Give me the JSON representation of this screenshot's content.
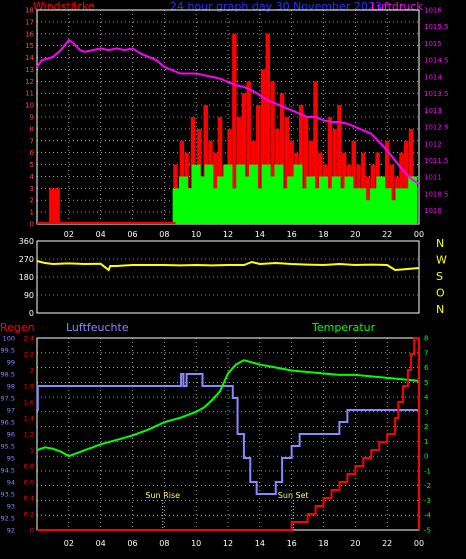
{
  "title": "24 hour graph day  30 November 2023",
  "colors": {
    "red": "#ff0000",
    "green": "#00ff00",
    "magenta": "#ff00ff",
    "yellow": "#ffff00",
    "blue": "#8888ff",
    "grid": "#ffffff",
    "axis": "#cccccc"
  },
  "chart_data": [
    {
      "id": "wind",
      "type": "bar",
      "title_left": "Windstärke",
      "title_right": "Luftdruck",
      "y_left_ticks": [
        0,
        1,
        2,
        3,
        4,
        5,
        6,
        7,
        8,
        9,
        10,
        11,
        12,
        13,
        14,
        15,
        16,
        17,
        18
      ],
      "y_right_ticks": [
        "1010",
        "1010.5",
        "1011",
        "1011.5",
        "1012",
        "1012.5",
        "1013",
        "1013.5",
        "1014",
        "1014.5",
        "1015",
        "1015.5",
        "1016"
      ],
      "ylim_left": [
        0,
        18
      ],
      "ylim_right": [
        1009.6,
        1016
      ],
      "x_ticks": [
        "02",
        "04",
        "06",
        "08",
        "10",
        "12",
        "14",
        "16",
        "18",
        "20",
        "22",
        "00"
      ],
      "pressure": {
        "x": [
          0,
          0.3,
          0.7,
          1,
          1.5,
          2,
          2.3,
          2.7,
          3,
          3.5,
          4,
          4.5,
          5,
          5.5,
          6,
          6.5,
          7,
          7.5,
          8,
          8.5,
          9,
          9.5,
          10,
          10.5,
          11,
          11.5,
          12,
          12.5,
          13,
          13.5,
          14,
          14.5,
          15,
          15.5,
          16,
          16.5,
          17,
          17.5,
          18,
          18.5,
          19,
          19.5,
          20,
          20.5,
          21,
          21.5,
          22,
          22.5,
          23,
          23.5,
          24
        ],
        "y": [
          1014.3,
          1014.5,
          1014.55,
          1014.6,
          1014.8,
          1015.1,
          1015.0,
          1014.8,
          1014.75,
          1014.8,
          1014.85,
          1014.8,
          1014.85,
          1014.8,
          1014.85,
          1014.7,
          1014.6,
          1014.5,
          1014.3,
          1014.2,
          1014.1,
          1014.1,
          1014.1,
          1014.05,
          1014.0,
          1013.95,
          1013.85,
          1013.75,
          1013.7,
          1013.6,
          1013.45,
          1013.3,
          1013.2,
          1013.1,
          1013.0,
          1012.9,
          1012.8,
          1012.8,
          1012.7,
          1012.65,
          1012.65,
          1012.6,
          1012.5,
          1012.4,
          1012.3,
          1012.05,
          1011.8,
          1011.5,
          1011.2,
          1010.95,
          1010.8
        ]
      },
      "wind_bars_red": [
        [
          0.9,
          3
        ],
        [
          1.1,
          3
        ],
        [
          1.3,
          3
        ],
        [
          8.7,
          5
        ],
        [
          9.1,
          7
        ],
        [
          9.4,
          6
        ],
        [
          9.8,
          9
        ],
        [
          10.2,
          8
        ],
        [
          10.6,
          10
        ],
        [
          10.9,
          7
        ],
        [
          11.2,
          6
        ],
        [
          11.5,
          9
        ],
        [
          11.8,
          5
        ],
        [
          12.1,
          8
        ],
        [
          12.4,
          16
        ],
        [
          12.7,
          9
        ],
        [
          13.0,
          11
        ],
        [
          13.3,
          12
        ],
        [
          13.6,
          7
        ],
        [
          13.9,
          10
        ],
        [
          14.2,
          13
        ],
        [
          14.5,
          16
        ],
        [
          14.8,
          12
        ],
        [
          15.1,
          8
        ],
        [
          15.4,
          11
        ],
        [
          15.7,
          9
        ],
        [
          16.0,
          7
        ],
        [
          16.3,
          6
        ],
        [
          16.6,
          10
        ],
        [
          16.9,
          9
        ],
        [
          17.2,
          7
        ],
        [
          17.5,
          12
        ],
        [
          17.8,
          6
        ],
        [
          18.1,
          5
        ],
        [
          18.4,
          9
        ],
        [
          18.7,
          8
        ],
        [
          19.0,
          10
        ],
        [
          19.3,
          6
        ],
        [
          19.6,
          5
        ],
        [
          19.9,
          7
        ],
        [
          20.2,
          5
        ],
        [
          20.5,
          6
        ],
        [
          20.8,
          4
        ],
        [
          21.1,
          5
        ],
        [
          21.4,
          6
        ],
        [
          21.7,
          4
        ],
        [
          22.0,
          7
        ],
        [
          22.3,
          5
        ],
        [
          22.6,
          4
        ],
        [
          22.9,
          6
        ],
        [
          23.2,
          7
        ],
        [
          23.5,
          8
        ],
        [
          23.8,
          3
        ]
      ],
      "wind_bars_green": [
        [
          8.8,
          3
        ],
        [
          9.2,
          4
        ],
        [
          9.6,
          3
        ],
        [
          10.0,
          5
        ],
        [
          10.4,
          4
        ],
        [
          10.8,
          5
        ],
        [
          11.2,
          3
        ],
        [
          11.6,
          4
        ],
        [
          12.0,
          5
        ],
        [
          12.4,
          3
        ],
        [
          12.8,
          5
        ],
        [
          13.2,
          4
        ],
        [
          13.6,
          5
        ],
        [
          14.0,
          3
        ],
        [
          14.4,
          5
        ],
        [
          14.8,
          4
        ],
        [
          15.2,
          5
        ],
        [
          15.6,
          3
        ],
        [
          16.0,
          4
        ],
        [
          16.4,
          5
        ],
        [
          16.8,
          3
        ],
        [
          17.2,
          4
        ],
        [
          17.6,
          3
        ],
        [
          18.0,
          4
        ],
        [
          18.4,
          3
        ],
        [
          18.8,
          4
        ],
        [
          19.2,
          3
        ],
        [
          19.6,
          4
        ],
        [
          20.0,
          3
        ],
        [
          20.4,
          3
        ],
        [
          20.8,
          2
        ],
        [
          21.2,
          3
        ],
        [
          21.6,
          4
        ],
        [
          22.0,
          3
        ],
        [
          22.4,
          2
        ],
        [
          22.8,
          3
        ],
        [
          23.2,
          3
        ],
        [
          23.6,
          4
        ]
      ]
    },
    {
      "id": "direction",
      "type": "line",
      "y_ticks": [
        "360",
        "270",
        "180",
        "90",
        "0"
      ],
      "right_labels": [
        "N",
        "W",
        "S",
        "O",
        "N"
      ],
      "ylim": [
        0,
        360
      ],
      "x": [
        0,
        0.5,
        1,
        2,
        3,
        4,
        4.5,
        4.6,
        5,
        6,
        7,
        8,
        9,
        10,
        11,
        12,
        13,
        13.5,
        14,
        15,
        16,
        17,
        18,
        19,
        20,
        21,
        22,
        22.5,
        23,
        24
      ],
      "y": [
        260,
        250,
        245,
        248,
        245,
        246,
        215,
        235,
        235,
        240,
        240,
        240,
        238,
        240,
        238,
        240,
        240,
        255,
        245,
        250,
        245,
        242,
        240,
        245,
        240,
        242,
        240,
        215,
        218,
        225
      ]
    },
    {
      "id": "rain_hum_temp",
      "type": "line",
      "title_left": "Regen",
      "title_mid": "Luftfeuchte",
      "title_right": "Temperatur",
      "y_rain_ticks": [
        "0",
        "0.2",
        "0.4",
        "0.6",
        "0.8",
        "1",
        "1.2",
        "1.4",
        "1.6",
        "1.8",
        "2",
        "2.2",
        "2.4"
      ],
      "y_hum_ticks": [
        "92",
        "92.5",
        "93",
        "93.5",
        "94",
        "94.5",
        "95",
        "95.5",
        "96",
        "96.5",
        "97",
        "97.5",
        "98",
        "98.5",
        "99",
        "99.5",
        "100"
      ],
      "y_temp_ticks": [
        "-5",
        "-4",
        "-3",
        "-2",
        "-1",
        "0",
        "1",
        "2",
        "3",
        "4",
        "5",
        "6",
        "7",
        "8"
      ],
      "annotations": [
        "Sun Rise",
        "Sun Set"
      ],
      "humidity": {
        "x": [
          0,
          0.05,
          7,
          9,
          9.05,
          9.2,
          9.4,
          9.6,
          10.4,
          11,
          11.6,
          12,
          12.3,
          12.6,
          13,
          13.4,
          13.8,
          14.4,
          15,
          15.4,
          16,
          16.5,
          17,
          17.5,
          18,
          18.5,
          19,
          19.5,
          20,
          20.5,
          24
        ],
        "y": [
          97,
          98,
          98,
          98,
          98.5,
          98,
          98.5,
          98.5,
          98,
          98,
          98,
          98,
          97.5,
          96,
          95,
          94,
          93.5,
          93.5,
          94,
          95,
          95.5,
          96,
          96,
          96,
          96,
          96,
          96.5,
          97,
          97,
          97,
          97
        ]
      },
      "temperature": {
        "x": [
          0,
          0.5,
          1,
          1.5,
          2,
          2.5,
          3,
          4,
          5,
          6,
          7,
          8,
          9,
          10,
          10.5,
          11,
          11.5,
          12,
          12.5,
          13,
          14,
          15,
          16,
          17,
          18,
          19,
          20,
          21,
          22,
          23,
          24
        ],
        "y": [
          0.4,
          0.6,
          0.5,
          0.3,
          0,
          0.2,
          0.4,
          0.8,
          1.1,
          1.4,
          1.8,
          2.3,
          2.6,
          3.0,
          3.3,
          3.8,
          4.4,
          5.6,
          6.2,
          6.5,
          6.2,
          6.0,
          5.8,
          5.7,
          5.6,
          5.5,
          5.5,
          5.4,
          5.3,
          5.2,
          5.1
        ]
      },
      "rain": {
        "x": [
          0,
          15.9,
          16,
          17,
          17.5,
          18,
          18.5,
          19,
          19.5,
          20,
          20.5,
          21,
          21.5,
          22,
          22.5,
          22.7,
          23,
          23.3,
          23.5,
          23.7,
          24
        ],
        "y": [
          0,
          0,
          0.1,
          0.2,
          0.3,
          0.4,
          0.5,
          0.6,
          0.7,
          0.8,
          0.9,
          1.0,
          1.1,
          1.2,
          1.4,
          1.6,
          1.8,
          2.0,
          2.2,
          2.4,
          0
        ]
      },
      "sunrise_x": 7.9,
      "sunset_x": 16.1
    }
  ]
}
